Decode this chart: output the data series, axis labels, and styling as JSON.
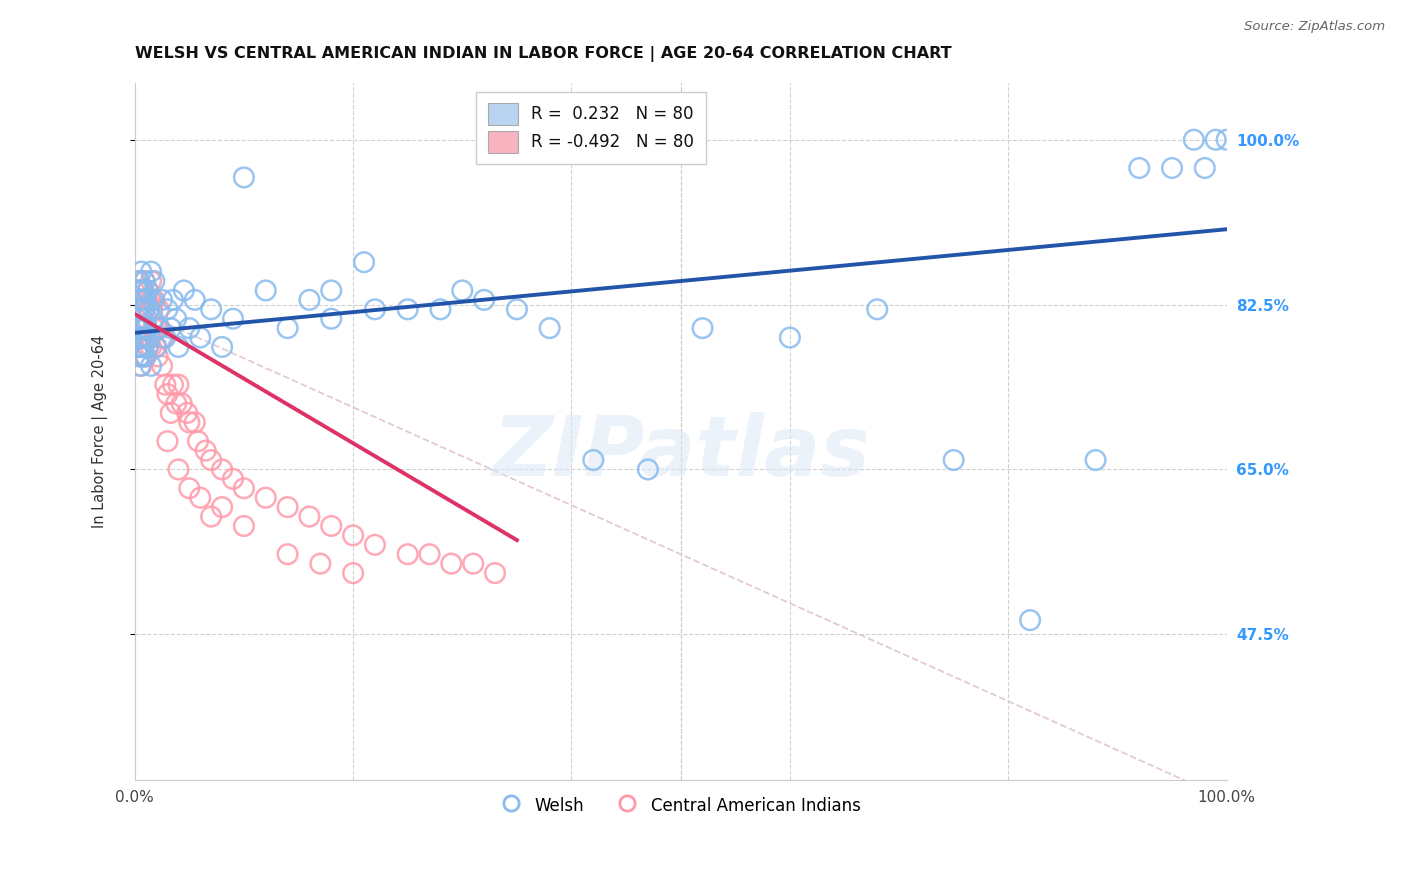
{
  "title": "WELSH VS CENTRAL AMERICAN INDIAN IN LABOR FORCE | AGE 20-64 CORRELATION CHART",
  "source": "Source: ZipAtlas.com",
  "ylabel": "In Labor Force | Age 20-64",
  "watermark": "ZIPatlas",
  "welsh_r": 0.232,
  "welsh_n": 80,
  "cai_r": -0.492,
  "cai_n": 80,
  "y_tick_values": [
    1.0,
    0.825,
    0.65,
    0.475
  ],
  "y_tick_labels": [
    "100.0%",
    "82.5%",
    "65.0%",
    "47.5%"
  ],
  "blue_color": "#88bbee",
  "pink_color": "#ff99aa",
  "blue_line_color": "#2255aa",
  "pink_line_color": "#dd3366",
  "dashed_line_color": "#ddbbcc",
  "legend_blue_label": "Welsh",
  "legend_pink_label": "Central American Indians",
  "right_tick_color": "#3399ff",
  "background_color": "#ffffff",
  "title_fontsize": 11.5,
  "tick_fontsize": 11,
  "ylabel_fontsize": 10.5,
  "welsh_x": [
    0.002,
    0.003,
    0.003,
    0.004,
    0.004,
    0.004,
    0.005,
    0.005,
    0.005,
    0.005,
    0.005,
    0.006,
    0.006,
    0.006,
    0.007,
    0.007,
    0.007,
    0.008,
    0.008,
    0.008,
    0.009,
    0.009,
    0.01,
    0.01,
    0.01,
    0.011,
    0.011,
    0.012,
    0.012,
    0.013,
    0.014,
    0.015,
    0.015,
    0.016,
    0.017,
    0.018,
    0.02,
    0.022,
    0.025,
    0.028,
    0.03,
    0.033,
    0.035,
    0.038,
    0.04,
    0.045,
    0.05,
    0.055,
    0.06,
    0.07,
    0.08,
    0.09,
    0.1,
    0.12,
    0.14,
    0.16,
    0.18,
    0.21,
    0.25,
    0.3,
    0.35,
    0.38,
    0.42,
    0.47,
    0.52,
    0.6,
    0.68,
    0.75,
    0.82,
    0.88,
    0.92,
    0.95,
    0.97,
    0.98,
    0.99,
    1.0,
    0.28,
    0.32,
    0.22,
    0.18
  ],
  "welsh_y": [
    0.8,
    0.84,
    0.78,
    0.82,
    0.77,
    0.85,
    0.79,
    0.83,
    0.76,
    0.81,
    0.84,
    0.78,
    0.82,
    0.86,
    0.79,
    0.83,
    0.77,
    0.8,
    0.84,
    0.78,
    0.82,
    0.85,
    0.79,
    0.83,
    0.77,
    0.81,
    0.8,
    0.84,
    0.78,
    0.82,
    0.79,
    0.86,
    0.76,
    0.83,
    0.81,
    0.85,
    0.78,
    0.8,
    0.83,
    0.79,
    0.82,
    0.8,
    0.83,
    0.81,
    0.78,
    0.84,
    0.8,
    0.83,
    0.79,
    0.82,
    0.78,
    0.81,
    0.96,
    0.84,
    0.8,
    0.83,
    0.81,
    0.87,
    0.82,
    0.84,
    0.82,
    0.8,
    0.66,
    0.65,
    0.8,
    0.79,
    0.82,
    0.66,
    0.49,
    0.66,
    0.97,
    0.97,
    1.0,
    0.97,
    1.0,
    1.0,
    0.82,
    0.83,
    0.82,
    0.84
  ],
  "cai_x": [
    0.002,
    0.003,
    0.003,
    0.004,
    0.004,
    0.005,
    0.005,
    0.005,
    0.005,
    0.006,
    0.006,
    0.006,
    0.007,
    0.007,
    0.007,
    0.008,
    0.008,
    0.008,
    0.008,
    0.009,
    0.009,
    0.009,
    0.01,
    0.01,
    0.011,
    0.011,
    0.012,
    0.012,
    0.013,
    0.013,
    0.014,
    0.015,
    0.015,
    0.016,
    0.017,
    0.018,
    0.019,
    0.02,
    0.021,
    0.022,
    0.023,
    0.025,
    0.026,
    0.028,
    0.03,
    0.033,
    0.035,
    0.038,
    0.04,
    0.043,
    0.048,
    0.05,
    0.055,
    0.058,
    0.065,
    0.07,
    0.08,
    0.09,
    0.1,
    0.12,
    0.14,
    0.16,
    0.18,
    0.2,
    0.22,
    0.25,
    0.27,
    0.29,
    0.31,
    0.33,
    0.14,
    0.17,
    0.2,
    0.08,
    0.1,
    0.06,
    0.04,
    0.03,
    0.05,
    0.07
  ],
  "cai_y": [
    0.82,
    0.85,
    0.79,
    0.83,
    0.78,
    0.84,
    0.8,
    0.77,
    0.82,
    0.83,
    0.79,
    0.76,
    0.84,
    0.78,
    0.81,
    0.83,
    0.8,
    0.77,
    0.84,
    0.79,
    0.82,
    0.85,
    0.8,
    0.77,
    0.83,
    0.79,
    0.84,
    0.78,
    0.82,
    0.79,
    0.83,
    0.85,
    0.78,
    0.82,
    0.8,
    0.83,
    0.78,
    0.8,
    0.77,
    0.82,
    0.8,
    0.76,
    0.79,
    0.74,
    0.73,
    0.71,
    0.74,
    0.72,
    0.74,
    0.72,
    0.71,
    0.7,
    0.7,
    0.68,
    0.67,
    0.66,
    0.65,
    0.64,
    0.63,
    0.62,
    0.61,
    0.6,
    0.59,
    0.58,
    0.57,
    0.56,
    0.56,
    0.55,
    0.55,
    0.54,
    0.56,
    0.55,
    0.54,
    0.61,
    0.59,
    0.62,
    0.65,
    0.68,
    0.63,
    0.6
  ],
  "xlim": [
    0.0,
    1.0
  ],
  "ylim": [
    0.32,
    1.06
  ]
}
